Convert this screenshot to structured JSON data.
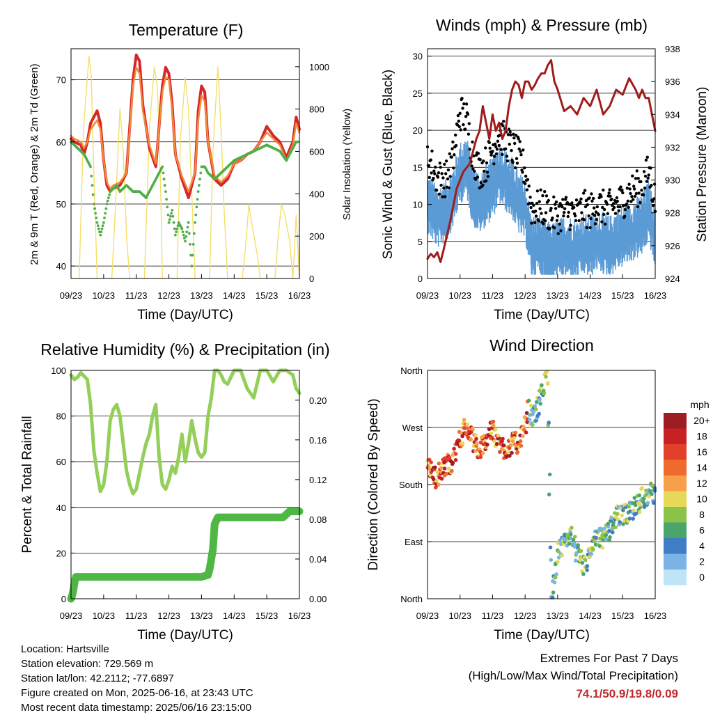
{
  "x_ticks": [
    "09/23",
    "10/23",
    "11/23",
    "12/23",
    "13/23",
    "14/23",
    "15/23",
    "16/23"
  ],
  "x_label": "Time (Day/UTC)",
  "colors": {
    "t2m": "#d62728",
    "t9m": "#f28a3a",
    "td": "#4fae48",
    "solar": "#f5df68",
    "wind": "#5b9bd5",
    "gust": "#000000",
    "pressure": "#a01c1c",
    "rh": "#93cf5a",
    "precip": "#4fb845"
  },
  "chart_data": [
    {
      "type": "line",
      "title": "Temperature (F)",
      "xlabel": "Time (Day/UTC)",
      "ylabel": "2m & 9m T (Red, Orange) & 2m Td (Green)",
      "y2label": "Solar Insolation (Yellow)",
      "ylim": [
        38,
        75
      ],
      "yticks": [
        40,
        50,
        60,
        70
      ],
      "y2lim": [
        0,
        1085
      ],
      "y2ticks": [
        0,
        200,
        400,
        600,
        800,
        1000
      ],
      "x_days": [
        0,
        7
      ],
      "series": [
        {
          "name": "2m T",
          "color": "#d62728",
          "x": [
            0,
            0.1,
            0.3,
            0.4,
            0.5,
            0.6,
            0.8,
            0.9,
            1.0,
            1.1,
            1.2,
            1.3,
            1.5,
            1.7,
            1.9,
            2.0,
            2.1,
            2.2,
            2.4,
            2.6,
            2.8,
            2.9,
            3.0,
            3.1,
            3.2,
            3.4,
            3.6,
            3.8,
            3.9,
            4.0,
            4.1,
            4.2,
            4.4,
            4.6,
            4.8,
            5.0,
            5.2,
            5.4,
            5.6,
            5.8,
            6.0,
            6.2,
            6.4,
            6.6,
            6.8,
            6.9,
            7.0
          ],
          "y": [
            60.5,
            60,
            59.5,
            58,
            60,
            63,
            65,
            63,
            57,
            53,
            52,
            52.5,
            53,
            55,
            70,
            74,
            73,
            66,
            59,
            56,
            69,
            72,
            71,
            66,
            58,
            54,
            51,
            55,
            65,
            69,
            68,
            60,
            54,
            53,
            54,
            56.5,
            57,
            58,
            58.5,
            60,
            62.5,
            61,
            60,
            57.5,
            60,
            64,
            62
          ]
        },
        {
          "name": "9m T",
          "color": "#f28a3a",
          "x": [
            0,
            0.1,
            0.3,
            0.4,
            0.5,
            0.6,
            0.8,
            0.9,
            1.0,
            1.1,
            1.2,
            1.3,
            1.5,
            1.7,
            1.9,
            2.0,
            2.1,
            2.2,
            2.4,
            2.6,
            2.8,
            2.9,
            3.0,
            3.1,
            3.2,
            3.4,
            3.6,
            3.8,
            3.9,
            4.0,
            4.1,
            4.2,
            4.4,
            4.6,
            4.8,
            5.0,
            5.2,
            5.4,
            5.6,
            5.8,
            6.0,
            6.2,
            6.4,
            6.6,
            6.8,
            6.9,
            7.0
          ],
          "y": [
            61,
            60.5,
            60,
            59,
            60,
            62,
            63.5,
            62,
            57,
            53.5,
            52.5,
            53,
            53.5,
            55,
            69,
            72,
            71,
            65,
            59.5,
            56.5,
            68,
            70.5,
            70,
            65,
            58,
            54.5,
            52,
            55,
            63.5,
            67.5,
            66.5,
            60,
            54.5,
            53.5,
            54.5,
            56.5,
            57,
            58,
            58.5,
            60,
            61.5,
            60.5,
            59.5,
            57,
            59.5,
            63,
            61.5
          ]
        },
        {
          "name": "2m Td",
          "color": "#4fae48",
          "x": [
            0,
            0.2,
            0.4,
            0.5,
            0.6,
            0.7,
            0.8,
            0.9,
            1.0,
            1.1,
            1.2,
            1.4,
            1.5,
            1.7,
            1.9,
            2.1,
            2.3,
            2.5,
            2.7,
            2.8,
            2.9,
            3.0,
            3.1,
            3.2,
            3.3,
            3.4,
            3.5,
            3.6,
            3.7,
            3.8,
            3.9,
            4.0,
            4.1,
            4.2,
            4.4,
            4.6,
            4.8,
            5.0,
            5.2,
            5.4,
            5.6,
            5.8,
            6.0,
            6.2,
            6.4,
            6.6,
            6.8,
            6.9,
            7.0
          ],
          "y": [
            60,
            59,
            58,
            57,
            56,
            50,
            47,
            45,
            47,
            50,
            52,
            53,
            52,
            53,
            52,
            52,
            51,
            53,
            55,
            56,
            52,
            47,
            49,
            45,
            47,
            46,
            44,
            47,
            40,
            47,
            52,
            56,
            56,
            55,
            54,
            55,
            56,
            57,
            57.5,
            58,
            58.5,
            59,
            59.5,
            59,
            58.5,
            57,
            59,
            60,
            60
          ]
        }
      ],
      "solar": [
        {
          "x": [
            0.25,
            0.38,
            0.55,
            0.62,
            0.7,
            0.8
          ],
          "y": [
            0,
            700,
            1050,
            950,
            500,
            0
          ]
        },
        {
          "x": [
            1.25,
            1.38,
            1.5,
            1.6,
            1.7,
            1.8
          ],
          "y": [
            0,
            400,
            800,
            600,
            200,
            0
          ]
        },
        {
          "x": [
            2.25,
            2.4,
            2.55,
            2.65,
            2.75,
            2.8
          ],
          "y": [
            0,
            700,
            1000,
            900,
            400,
            0
          ]
        },
        {
          "x": [
            3.25,
            3.35,
            3.5,
            3.6,
            3.7,
            3.8
          ],
          "y": [
            0,
            650,
            950,
            800,
            400,
            0
          ]
        },
        {
          "x": [
            4.25,
            4.35,
            4.5,
            4.6,
            4.7,
            4.8
          ],
          "y": [
            0,
            600,
            1000,
            700,
            300,
            0
          ]
        },
        {
          "x": [
            5.25,
            5.35,
            5.45,
            5.55,
            5.7,
            5.8
          ],
          "y": [
            0,
            150,
            350,
            250,
            120,
            0
          ]
        },
        {
          "x": [
            6.25,
            6.35,
            6.45,
            6.55,
            6.7,
            6.8
          ],
          "y": [
            0,
            200,
            350,
            300,
            180,
            0
          ]
        },
        {
          "x": [
            6.8,
            6.85,
            6.9,
            6.95,
            7.0
          ],
          "y": [
            0,
            150,
            300,
            150,
            0
          ]
        }
      ]
    },
    {
      "type": "scatter",
      "title": "Winds (mph) & Pressure (mb)",
      "xlabel": "Time (Day/UTC)",
      "ylabel": "Sonic Wind & Gust (Blue, Black)",
      "y2label": "Station Pressure (Maroon)",
      "ylim": [
        0,
        31
      ],
      "yticks": [
        0,
        5,
        10,
        15,
        20,
        25,
        30
      ],
      "y2lim": [
        924,
        938
      ],
      "y2ticks": [
        924,
        926,
        928,
        930,
        932,
        934,
        936,
        938
      ],
      "x_days": [
        0,
        7
      ],
      "wind_mean": {
        "x": [
          0,
          0.3,
          0.6,
          0.8,
          1.0,
          1.2,
          1.4,
          1.6,
          1.8,
          2.0,
          2.2,
          2.4,
          2.6,
          2.8,
          3.0,
          3.2,
          3.4,
          3.6,
          3.8,
          4.0,
          4.2,
          4.4,
          4.6,
          4.8,
          5.0,
          5.2,
          5.4,
          5.6,
          5.8,
          6.0,
          6.2,
          6.4,
          6.6,
          6.8,
          7.0
        ],
        "y": [
          11,
          9,
          10,
          12,
          15,
          16,
          12,
          11,
          12,
          13,
          15,
          14,
          13,
          11,
          10,
          5,
          5.5,
          4.5,
          4,
          4.5,
          5,
          5,
          4.5,
          5.5,
          5,
          6,
          5.5,
          5,
          6,
          6.5,
          7,
          7.5,
          8,
          10,
          6
        ]
      },
      "gust_mean": {
        "x": [
          0,
          0.3,
          0.6,
          0.8,
          1.0,
          1.2,
          1.4,
          1.6,
          1.8,
          2.0,
          2.2,
          2.4,
          2.6,
          2.8,
          3.0,
          3.2,
          3.4,
          3.6,
          3.8,
          4.0,
          4.2,
          4.4,
          4.6,
          4.8,
          5.0,
          5.2,
          5.4,
          5.6,
          5.8,
          6.0,
          6.2,
          6.4,
          6.6,
          6.8,
          7.0
        ],
        "y": [
          16,
          13,
          13,
          16,
          22,
          21,
          16,
          14,
          15,
          17,
          19,
          18,
          17,
          16,
          14,
          9,
          9,
          9,
          8,
          8,
          8.5,
          8.5,
          8,
          9,
          8.5,
          9.5,
          9,
          9,
          9.5,
          10,
          11,
          11.5,
          12,
          14,
          10
        ]
      },
      "pressure": {
        "x": [
          0,
          0.1,
          0.2,
          0.3,
          0.4,
          0.5,
          0.7,
          0.9,
          1.1,
          1.3,
          1.5,
          1.6,
          1.7,
          1.8,
          1.9,
          2.0,
          2.1,
          2.2,
          2.3,
          2.4,
          2.5,
          2.6,
          2.7,
          2.8,
          2.9,
          3.0,
          3.1,
          3.2,
          3.3,
          3.4,
          3.5,
          3.6,
          3.7,
          3.8,
          3.9,
          4.0,
          4.2,
          4.4,
          4.6,
          4.8,
          5.0,
          5.2,
          5.4,
          5.6,
          5.8,
          6.0,
          6.2,
          6.4,
          6.5,
          6.6,
          6.7,
          6.8,
          6.9,
          7.0
        ],
        "y": [
          925.2,
          925.5,
          925.3,
          925.6,
          925.0,
          925.8,
          927.5,
          929.5,
          930.5,
          931.0,
          932.5,
          933.0,
          934.5,
          933.5,
          932.5,
          934.0,
          933.0,
          933.5,
          932.5,
          933.0,
          934.5,
          935.5,
          936.0,
          935.8,
          935.0,
          936.0,
          936.0,
          935.5,
          935.8,
          936.2,
          936.5,
          936.5,
          937.0,
          937.3,
          936.0,
          935.5,
          934.2,
          934.5,
          934.0,
          935.0,
          934.5,
          935.5,
          934.0,
          934.5,
          935.5,
          935.2,
          936.2,
          935.5,
          935.0,
          935.5,
          935.0,
          935.0,
          934.0,
          933.0
        ]
      }
    },
    {
      "type": "line",
      "title": "Relative Humidity (%) & Precipitation (in)",
      "xlabel": "Time (Day/UTC)",
      "ylabel": "Percent & Total Rainfall",
      "ylim": [
        0,
        100
      ],
      "yticks": [
        0,
        20,
        40,
        60,
        80,
        100
      ],
      "y2lim": [
        0,
        0.23
      ],
      "y2ticks": [
        0.0,
        0.04,
        0.08,
        0.12,
        0.16,
        0.2
      ],
      "x_days": [
        0,
        7
      ],
      "series": [
        {
          "name": "RH",
          "color": "#93cf5a",
          "x": [
            0,
            0.1,
            0.2,
            0.3,
            0.5,
            0.6,
            0.7,
            0.8,
            0.9,
            1.0,
            1.1,
            1.2,
            1.3,
            1.4,
            1.5,
            1.6,
            1.7,
            1.8,
            1.9,
            2.0,
            2.1,
            2.2,
            2.3,
            2.4,
            2.5,
            2.6,
            2.7,
            2.8,
            2.9,
            3.0,
            3.1,
            3.2,
            3.3,
            3.4,
            3.5,
            3.6,
            3.7,
            3.8,
            3.9,
            4.0,
            4.1,
            4.2,
            4.3,
            4.4,
            4.5,
            4.6,
            4.7,
            4.8,
            5.0,
            5.2,
            5.4,
            5.6,
            5.8,
            6.0,
            6.2,
            6.4,
            6.6,
            6.8,
            6.9,
            7.0
          ],
          "y": [
            98,
            96,
            97,
            99,
            96,
            85,
            65,
            55,
            47,
            50,
            60,
            78,
            83,
            85,
            80,
            68,
            56,
            50,
            46,
            48,
            55,
            62,
            68,
            72,
            80,
            85,
            62,
            50,
            48,
            52,
            58,
            55,
            62,
            72,
            60,
            68,
            78,
            70,
            64,
            62,
            64,
            80,
            88,
            100,
            100,
            98,
            95,
            94,
            100,
            100,
            92,
            88,
            100,
            100,
            95,
            100,
            100,
            98,
            92,
            90
          ]
        },
        {
          "name": "Total Rainfall",
          "color": "#4fb845",
          "axis": "right",
          "x": [
            0,
            0.05,
            0.08,
            0.1,
            0.15,
            1.0,
            2.0,
            3.0,
            4.0,
            4.2,
            4.25,
            4.3,
            4.35,
            4.4,
            4.5,
            4.6,
            5.0,
            6.0,
            6.5,
            6.6,
            6.7,
            7.0
          ],
          "y": [
            0.0,
            0.005,
            0.01,
            0.015,
            0.022,
            0.022,
            0.022,
            0.022,
            0.022,
            0.024,
            0.03,
            0.04,
            0.05,
            0.075,
            0.082,
            0.082,
            0.082,
            0.082,
            0.082,
            0.085,
            0.088,
            0.088
          ]
        }
      ]
    },
    {
      "type": "scatter",
      "title": "Wind Direction",
      "xlabel": "Time (Day/UTC)",
      "ylabel": "Direction (Colored By Speed)",
      "ylim": [
        0,
        360
      ],
      "yticks": [
        0,
        90,
        180,
        270,
        360
      ],
      "ytick_labels": [
        "North",
        "East",
        "South",
        "West",
        "North"
      ],
      "x_days": [
        0,
        7
      ],
      "direction_trend": {
        "x": [
          0,
          0.2,
          0.4,
          0.6,
          0.8,
          1.0,
          1.2,
          1.4,
          1.6,
          1.8,
          2.0,
          2.2,
          2.4,
          2.6,
          2.8,
          3.0,
          3.1,
          3.2,
          3.3,
          3.4,
          3.5,
          3.6,
          3.7,
          3.8,
          3.9,
          4.0,
          4.2,
          4.4,
          4.6,
          4.8,
          5.0,
          5.2,
          5.4,
          5.6,
          5.8,
          6.0,
          6.2,
          6.4,
          6.6,
          6.8,
          7.0
        ],
        "y": [
          220,
          190,
          200,
          210,
          220,
          255,
          270,
          250,
          230,
          255,
          265,
          245,
          235,
          245,
          245,
          270,
          300,
          285,
          290,
          305,
          320,
          340,
          355,
          5,
          30,
          70,
          85,
          105,
          70,
          50,
          70,
          95,
          95,
          110,
          130,
          130,
          135,
          145,
          160,
          165,
          165
        ]
      },
      "colorbar": {
        "title": "mph",
        "labels": [
          "20+",
          "18",
          "16",
          "14",
          "12",
          "10",
          "8",
          "6",
          "4",
          "2",
          "0"
        ],
        "colors": [
          "#9e1d22",
          "#c72126",
          "#e2402a",
          "#f06a2e",
          "#f7a04a",
          "#e6d95a",
          "#8bc34a",
          "#4aa56a",
          "#3f7dc4",
          "#7ab4e4",
          "#bfe3f7"
        ]
      }
    }
  ],
  "info": {
    "location": "Location: Hartsville",
    "elevation": "Station elevation: 729.569 m",
    "latlon": "Station lat/lon: 42.2112; -77.6897",
    "created": "Figure created on Mon, 2025-06-16, at 23:43 UTC",
    "recent": "Most recent data timestamp: 2025/06/16 23:15:00"
  },
  "extremes": {
    "title": "Extremes For Past 7 Days",
    "subtitle": "(High/Low/Max Wind/Total Precipitation)",
    "values": "74.1/50.9/19.8/0.09"
  }
}
